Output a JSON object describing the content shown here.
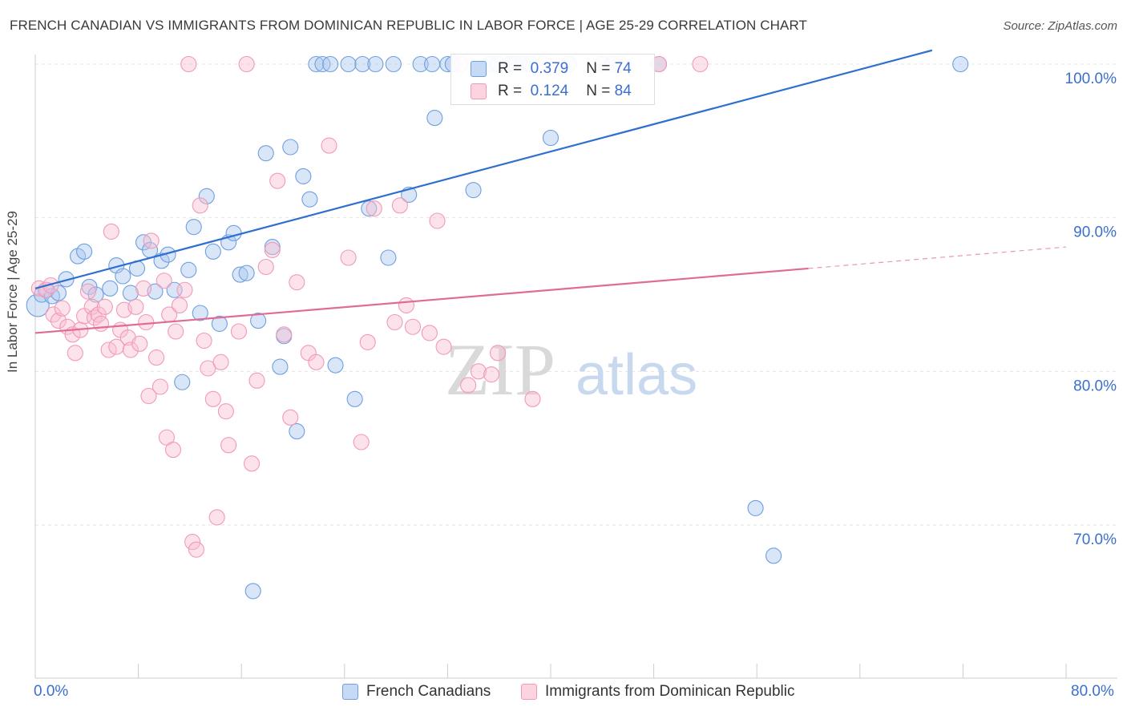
{
  "header": {
    "title": "FRENCH CANADIAN VS IMMIGRANTS FROM DOMINICAN REPUBLIC IN LABOR FORCE | AGE 25-29 CORRELATION CHART",
    "source": "Source: ZipAtlas.com"
  },
  "watermark": {
    "zip": "ZIP",
    "atlas": "atlas"
  },
  "stats": {
    "r_label": "R =",
    "n_label": "N =",
    "rows": [
      {
        "r": "0.379",
        "n": "74"
      },
      {
        "r": "0.124",
        "n": "84"
      }
    ]
  },
  "chart_data": {
    "type": "scatter",
    "title": "FRENCH CANADIAN VS IMMIGRANTS FROM DOMINICAN REPUBLIC IN LABOR FORCE | AGE 25-29 CORRELATION CHART",
    "xlabel": "",
    "ylabel": "In Labor Force | Age 25-29",
    "xlim": [
      0,
      80
    ],
    "ylim": [
      60,
      101.5
    ],
    "x_tick_labels": [
      "0.0%",
      "80.0%"
    ],
    "y_tick_labels": [
      "100.0%",
      "90.0%",
      "80.0%",
      "70.0%"
    ],
    "y_ticks": [
      100,
      90,
      80,
      70
    ],
    "grid": true,
    "legend_placement": "bottom",
    "colors": {
      "blue": "#6f9fe0",
      "pink": "#f19ab6",
      "blue_line": "#2f6fd0",
      "pink_line": "#e06b94"
    },
    "series": [
      {
        "name": "French Canadians",
        "color": "#6f9fe0",
        "trend": {
          "x0": 0,
          "y0": 85.4,
          "x1": 69.6,
          "y1": 100.9,
          "dash_to": null
        },
        "points": [
          [
            0.2,
            84.3
          ],
          [
            0.5,
            85.0
          ],
          [
            0.9,
            85.3
          ],
          [
            1.3,
            84.9
          ],
          [
            1.8,
            85.1
          ],
          [
            2.4,
            86.0
          ],
          [
            3.3,
            87.5
          ],
          [
            3.8,
            87.8
          ],
          [
            4.2,
            85.5
          ],
          [
            4.7,
            85.0
          ],
          [
            5.8,
            85.4
          ],
          [
            6.3,
            86.9
          ],
          [
            6.8,
            86.2
          ],
          [
            7.4,
            85.1
          ],
          [
            7.9,
            86.7
          ],
          [
            8.4,
            88.4
          ],
          [
            8.9,
            87.9
          ],
          [
            9.3,
            85.2
          ],
          [
            9.8,
            87.2
          ],
          [
            10.3,
            87.6
          ],
          [
            10.8,
            85.3
          ],
          [
            11.4,
            79.3
          ],
          [
            11.9,
            86.6
          ],
          [
            12.3,
            89.4
          ],
          [
            12.8,
            83.8
          ],
          [
            13.3,
            91.4
          ],
          [
            13.8,
            87.8
          ],
          [
            14.3,
            83.1
          ],
          [
            15.0,
            88.4
          ],
          [
            15.4,
            89.0
          ],
          [
            15.9,
            86.3
          ],
          [
            16.4,
            86.4
          ],
          [
            16.9,
            65.7
          ],
          [
            17.3,
            83.3
          ],
          [
            17.9,
            94.2
          ],
          [
            18.4,
            88.1
          ],
          [
            19.0,
            80.3
          ],
          [
            19.3,
            82.3
          ],
          [
            19.8,
            94.6
          ],
          [
            20.3,
            76.1
          ],
          [
            20.8,
            92.7
          ],
          [
            21.3,
            91.2
          ],
          [
            21.8,
            100.0
          ],
          [
            22.3,
            100.0
          ],
          [
            22.9,
            100.0
          ],
          [
            23.3,
            80.4
          ],
          [
            24.3,
            100.0
          ],
          [
            24.8,
            78.2
          ],
          [
            25.4,
            100.0
          ],
          [
            25.9,
            90.6
          ],
          [
            26.4,
            100.0
          ],
          [
            27.4,
            87.4
          ],
          [
            27.8,
            100.0
          ],
          [
            29.0,
            91.5
          ],
          [
            29.9,
            100.0
          ],
          [
            30.8,
            100.0
          ],
          [
            31.0,
            96.5
          ],
          [
            32.0,
            100.0
          ],
          [
            32.4,
            100.0
          ],
          [
            34.0,
            91.8
          ],
          [
            35.3,
            100.0
          ],
          [
            35.9,
            100.0
          ],
          [
            36.8,
            100.0
          ],
          [
            37.2,
            100.0
          ],
          [
            37.8,
            100.0
          ],
          [
            38.4,
            100.0
          ],
          [
            40.0,
            95.2
          ],
          [
            41.4,
            100.0
          ],
          [
            44.0,
            100.0
          ],
          [
            44.8,
            100.0
          ],
          [
            48.4,
            100.0
          ],
          [
            55.9,
            71.1
          ],
          [
            57.3,
            68.0
          ],
          [
            71.8,
            100.0
          ]
        ]
      },
      {
        "name": "Immigrants from Dominican Republic",
        "color": "#f19ab6",
        "trend": {
          "x0": 0,
          "y0": 82.5,
          "x1": 60.0,
          "y1": 86.7,
          "dash_to": [
            80,
            88.1
          ]
        },
        "points": [
          [
            0.3,
            85.4
          ],
          [
            0.8,
            85.3
          ],
          [
            1.2,
            85.6
          ],
          [
            1.4,
            83.7
          ],
          [
            1.8,
            83.3
          ],
          [
            2.1,
            84.1
          ],
          [
            2.5,
            82.9
          ],
          [
            2.9,
            82.4
          ],
          [
            3.1,
            81.2
          ],
          [
            3.5,
            82.7
          ],
          [
            3.8,
            83.6
          ],
          [
            4.1,
            85.2
          ],
          [
            4.4,
            84.2
          ],
          [
            4.6,
            83.5
          ],
          [
            4.9,
            83.7
          ],
          [
            5.1,
            83.1
          ],
          [
            5.4,
            84.2
          ],
          [
            5.7,
            81.4
          ],
          [
            5.9,
            89.1
          ],
          [
            6.3,
            81.6
          ],
          [
            6.6,
            82.7
          ],
          [
            6.9,
            84.0
          ],
          [
            7.2,
            82.2
          ],
          [
            7.4,
            81.4
          ],
          [
            7.8,
            84.2
          ],
          [
            8.1,
            81.8
          ],
          [
            8.4,
            85.4
          ],
          [
            8.6,
            83.2
          ],
          [
            8.8,
            78.4
          ],
          [
            9.0,
            88.5
          ],
          [
            9.4,
            80.9
          ],
          [
            9.7,
            79.0
          ],
          [
            10.0,
            85.9
          ],
          [
            10.2,
            75.7
          ],
          [
            10.4,
            83.7
          ],
          [
            10.7,
            74.9
          ],
          [
            10.9,
            82.6
          ],
          [
            11.2,
            84.3
          ],
          [
            11.6,
            85.3
          ],
          [
            11.9,
            100.0
          ],
          [
            12.2,
            68.9
          ],
          [
            12.5,
            68.4
          ],
          [
            12.8,
            90.8
          ],
          [
            13.1,
            82.0
          ],
          [
            13.4,
            80.2
          ],
          [
            13.8,
            78.2
          ],
          [
            14.1,
            70.5
          ],
          [
            14.4,
            80.6
          ],
          [
            14.8,
            77.4
          ],
          [
            15.0,
            75.2
          ],
          [
            15.8,
            82.6
          ],
          [
            16.4,
            100.0
          ],
          [
            16.8,
            74.0
          ],
          [
            17.2,
            79.4
          ],
          [
            17.9,
            86.8
          ],
          [
            18.4,
            87.9
          ],
          [
            18.8,
            92.4
          ],
          [
            19.3,
            82.4
          ],
          [
            19.8,
            77.0
          ],
          [
            20.3,
            85.8
          ],
          [
            21.2,
            81.2
          ],
          [
            21.8,
            80.6
          ],
          [
            22.8,
            94.7
          ],
          [
            24.3,
            87.4
          ],
          [
            25.3,
            75.4
          ],
          [
            25.8,
            81.9
          ],
          [
            26.3,
            90.6
          ],
          [
            27.9,
            83.2
          ],
          [
            28.3,
            90.8
          ],
          [
            28.8,
            84.3
          ],
          [
            29.3,
            82.9
          ],
          [
            30.6,
            82.5
          ],
          [
            31.7,
            81.6
          ],
          [
            33.0,
            100.0
          ],
          [
            33.6,
            79.1
          ],
          [
            34.4,
            80.0
          ],
          [
            35.4,
            79.8
          ],
          [
            35.9,
            81.2
          ],
          [
            38.6,
            78.2
          ],
          [
            39.5,
            100.0
          ],
          [
            45.4,
            100.0
          ],
          [
            48.4,
            100.0
          ],
          [
            51.6,
            100.0
          ],
          [
            31.2,
            89.8
          ]
        ]
      }
    ]
  },
  "legend": {
    "items": [
      {
        "label": "French Canadians"
      },
      {
        "label": "Immigrants from Dominican Republic"
      }
    ]
  }
}
